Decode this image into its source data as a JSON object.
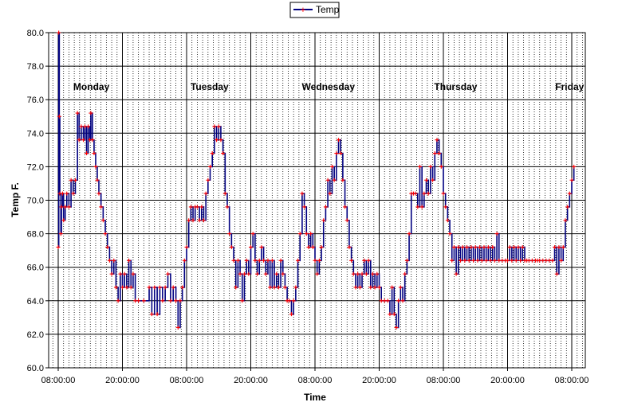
{
  "chart_data": {
    "type": "line",
    "title": "",
    "xlabel": "Time",
    "ylabel": "Temp F.",
    "ylim": [
      60,
      80
    ],
    "y_ticks": [
      "60.0",
      "62.0",
      "64.0",
      "66.0",
      "68.0",
      "70.0",
      "72.0",
      "74.0",
      "76.0",
      "78.0",
      "80.0"
    ],
    "x_range_hours": [
      0,
      100
    ],
    "x_ticks": [
      {
        "hours": 0,
        "label": "08:00:00"
      },
      {
        "hours": 12,
        "label": "20:00:00"
      },
      {
        "hours": 24,
        "label": "08:00:00"
      },
      {
        "hours": 36,
        "label": "20:00:00"
      },
      {
        "hours": 48,
        "label": "08:00:00"
      },
      {
        "hours": 60,
        "label": "20:00:00"
      },
      {
        "hours": 72,
        "label": "08:00:00"
      },
      {
        "hours": 84,
        "label": "20:00:00"
      },
      {
        "hours": 96,
        "label": "08:00:00"
      }
    ],
    "grid": "major horizontal and vertical lines, dotted minor vertical lines every hour",
    "legend": "top-center",
    "day_labels": [
      {
        "text": "Monday",
        "hours": 6.2
      },
      {
        "text": "Tuesday",
        "hours": 28.3
      },
      {
        "text": "Wednesday",
        "hours": 50.5
      },
      {
        "text": "Thursday",
        "hours": 74.3
      },
      {
        "text": "Friday",
        "hours": 95.6
      }
    ],
    "series": [
      {
        "name": "Temp",
        "color": "#000080",
        "marker_color": "#ff0000",
        "points": [
          [
            0.0,
            67.2
          ],
          [
            0.1,
            80.0
          ],
          [
            0.2,
            75.0
          ],
          [
            0.3,
            70.4
          ],
          [
            0.5,
            68.0
          ],
          [
            0.6,
            69.6
          ],
          [
            0.8,
            70.4
          ],
          [
            1.0,
            68.8
          ],
          [
            1.3,
            69.6
          ],
          [
            1.6,
            70.4
          ],
          [
            2.0,
            69.6
          ],
          [
            2.4,
            71.2
          ],
          [
            2.8,
            70.4
          ],
          [
            3.2,
            71.2
          ],
          [
            3.6,
            75.2
          ],
          [
            3.9,
            73.6
          ],
          [
            4.3,
            74.4
          ],
          [
            4.7,
            73.6
          ],
          [
            5.0,
            74.4
          ],
          [
            5.3,
            72.8
          ],
          [
            5.6,
            74.4
          ],
          [
            5.9,
            73.6
          ],
          [
            6.1,
            75.2
          ],
          [
            6.4,
            73.6
          ],
          [
            6.7,
            72.8
          ],
          [
            7.0,
            72.0
          ],
          [
            7.3,
            71.2
          ],
          [
            7.6,
            70.4
          ],
          [
            8.0,
            69.6
          ],
          [
            8.4,
            68.8
          ],
          [
            8.8,
            68.0
          ],
          [
            9.2,
            67.2
          ],
          [
            9.6,
            66.4
          ],
          [
            10.0,
            65.6
          ],
          [
            10.4,
            66.4
          ],
          [
            10.8,
            64.8
          ],
          [
            11.2,
            64.0
          ],
          [
            11.6,
            65.6
          ],
          [
            12.0,
            64.8
          ],
          [
            12.4,
            65.6
          ],
          [
            12.8,
            64.8
          ],
          [
            13.2,
            66.4
          ],
          [
            13.6,
            64.8
          ],
          [
            14.0,
            65.6
          ],
          [
            14.4,
            64.0
          ],
          [
            15.0,
            64.0
          ],
          [
            16.0,
            64.0
          ],
          [
            17.0,
            64.8
          ],
          [
            17.5,
            63.2
          ],
          [
            18.0,
            64.8
          ],
          [
            18.5,
            63.2
          ],
          [
            19.0,
            64.8
          ],
          [
            19.5,
            64.0
          ],
          [
            20.0,
            64.8
          ],
          [
            20.5,
            65.6
          ],
          [
            21.0,
            64.0
          ],
          [
            21.5,
            64.8
          ],
          [
            22.0,
            64.0
          ],
          [
            22.4,
            62.4
          ],
          [
            22.8,
            64.0
          ],
          [
            23.2,
            64.8
          ],
          [
            23.6,
            66.4
          ],
          [
            24.0,
            67.2
          ],
          [
            24.4,
            68.8
          ],
          [
            24.8,
            69.6
          ],
          [
            25.2,
            68.8
          ],
          [
            25.6,
            69.6
          ],
          [
            26.0,
            69.6
          ],
          [
            26.4,
            68.8
          ],
          [
            26.8,
            69.6
          ],
          [
            27.2,
            68.8
          ],
          [
            27.6,
            70.4
          ],
          [
            28.0,
            71.2
          ],
          [
            28.4,
            72.0
          ],
          [
            28.8,
            72.8
          ],
          [
            29.2,
            74.4
          ],
          [
            29.6,
            73.6
          ],
          [
            30.0,
            74.4
          ],
          [
            30.4,
            73.6
          ],
          [
            30.8,
            72.8
          ],
          [
            31.2,
            70.4
          ],
          [
            31.6,
            69.6
          ],
          [
            32.0,
            68.0
          ],
          [
            32.4,
            67.2
          ],
          [
            32.8,
            66.4
          ],
          [
            33.2,
            64.8
          ],
          [
            33.6,
            66.4
          ],
          [
            34.0,
            65.6
          ],
          [
            34.4,
            64.0
          ],
          [
            34.8,
            65.6
          ],
          [
            35.2,
            66.4
          ],
          [
            35.6,
            65.6
          ],
          [
            36.0,
            67.2
          ],
          [
            36.4,
            68.0
          ],
          [
            36.8,
            66.4
          ],
          [
            37.2,
            65.6
          ],
          [
            37.6,
            66.4
          ],
          [
            38.0,
            67.2
          ],
          [
            38.4,
            66.4
          ],
          [
            38.8,
            65.6
          ],
          [
            39.2,
            66.4
          ],
          [
            39.6,
            64.8
          ],
          [
            40.0,
            66.4
          ],
          [
            40.4,
            64.8
          ],
          [
            40.8,
            65.6
          ],
          [
            41.2,
            64.8
          ],
          [
            41.6,
            66.4
          ],
          [
            42.0,
            65.6
          ],
          [
            42.4,
            64.8
          ],
          [
            42.8,
            64.0
          ],
          [
            43.2,
            64.0
          ],
          [
            43.6,
            63.2
          ],
          [
            44.0,
            64.0
          ],
          [
            44.4,
            64.8
          ],
          [
            44.8,
            66.4
          ],
          [
            45.2,
            68.0
          ],
          [
            45.6,
            70.4
          ],
          [
            46.0,
            69.6
          ],
          [
            46.4,
            68.0
          ],
          [
            46.8,
            67.2
          ],
          [
            47.2,
            68.0
          ],
          [
            47.6,
            67.2
          ],
          [
            48.0,
            66.4
          ],
          [
            48.4,
            65.6
          ],
          [
            48.8,
            66.4
          ],
          [
            49.2,
            67.2
          ],
          [
            49.6,
            68.8
          ],
          [
            50.0,
            69.6
          ],
          [
            50.4,
            71.2
          ],
          [
            50.8,
            70.4
          ],
          [
            51.2,
            72.0
          ],
          [
            51.6,
            71.2
          ],
          [
            52.0,
            72.8
          ],
          [
            52.4,
            73.6
          ],
          [
            52.8,
            72.8
          ],
          [
            53.2,
            71.2
          ],
          [
            53.6,
            69.6
          ],
          [
            54.0,
            68.8
          ],
          [
            54.4,
            67.2
          ],
          [
            54.8,
            66.4
          ],
          [
            55.2,
            65.6
          ],
          [
            55.6,
            64.8
          ],
          [
            56.0,
            65.6
          ],
          [
            56.4,
            64.8
          ],
          [
            56.8,
            65.6
          ],
          [
            57.2,
            66.4
          ],
          [
            57.6,
            65.6
          ],
          [
            58.0,
            66.4
          ],
          [
            58.4,
            64.8
          ],
          [
            58.8,
            65.6
          ],
          [
            59.2,
            64.8
          ],
          [
            59.6,
            65.6
          ],
          [
            60.0,
            64.8
          ],
          [
            60.4,
            64.0
          ],
          [
            61.0,
            64.0
          ],
          [
            61.6,
            64.0
          ],
          [
            62.0,
            63.2
          ],
          [
            62.4,
            64.8
          ],
          [
            62.8,
            63.2
          ],
          [
            63.2,
            62.4
          ],
          [
            63.6,
            64.0
          ],
          [
            64.0,
            64.8
          ],
          [
            64.4,
            64.0
          ],
          [
            64.8,
            65.6
          ],
          [
            65.2,
            66.4
          ],
          [
            65.6,
            68.0
          ],
          [
            66.0,
            70.4
          ],
          [
            66.4,
            70.4
          ],
          [
            66.8,
            70.4
          ],
          [
            67.2,
            69.6
          ],
          [
            67.6,
            72.0
          ],
          [
            68.0,
            69.6
          ],
          [
            68.4,
            70.4
          ],
          [
            68.8,
            71.2
          ],
          [
            69.2,
            70.4
          ],
          [
            69.6,
            72.0
          ],
          [
            70.0,
            71.2
          ],
          [
            70.4,
            72.8
          ],
          [
            70.8,
            73.6
          ],
          [
            71.2,
            72.8
          ],
          [
            71.6,
            72.0
          ],
          [
            72.0,
            70.4
          ],
          [
            72.4,
            69.6
          ],
          [
            72.8,
            68.8
          ],
          [
            73.2,
            68.0
          ],
          [
            73.6,
            66.4
          ],
          [
            74.0,
            67.2
          ],
          [
            74.4,
            65.6
          ],
          [
            74.8,
            67.2
          ],
          [
            75.2,
            66.4
          ],
          [
            75.6,
            67.2
          ],
          [
            76.0,
            66.4
          ],
          [
            76.4,
            67.2
          ],
          [
            76.8,
            66.4
          ],
          [
            77.2,
            67.2
          ],
          [
            77.6,
            66.4
          ],
          [
            78.0,
            67.2
          ],
          [
            78.4,
            66.4
          ],
          [
            78.8,
            67.2
          ],
          [
            79.2,
            66.4
          ],
          [
            79.6,
            67.2
          ],
          [
            80.0,
            66.4
          ],
          [
            80.4,
            67.2
          ],
          [
            80.8,
            66.4
          ],
          [
            81.2,
            67.2
          ],
          [
            81.6,
            66.4
          ],
          [
            82.0,
            68.0
          ],
          [
            82.4,
            66.4
          ],
          [
            83.0,
            66.4
          ],
          [
            83.6,
            66.4
          ],
          [
            84.0,
            66.4
          ],
          [
            84.4,
            67.2
          ],
          [
            84.8,
            66.4
          ],
          [
            85.2,
            67.2
          ],
          [
            85.6,
            66.4
          ],
          [
            86.0,
            67.2
          ],
          [
            86.4,
            66.4
          ],
          [
            86.8,
            67.2
          ],
          [
            87.2,
            66.4
          ],
          [
            87.6,
            66.4
          ],
          [
            88.0,
            66.4
          ],
          [
            88.6,
            66.4
          ],
          [
            89.2,
            66.4
          ],
          [
            89.6,
            66.4
          ],
          [
            90.0,
            66.4
          ],
          [
            90.6,
            66.4
          ],
          [
            91.2,
            66.4
          ],
          [
            91.8,
            66.4
          ],
          [
            92.4,
            66.4
          ],
          [
            92.8,
            67.2
          ],
          [
            93.2,
            65.6
          ],
          [
            93.6,
            67.2
          ],
          [
            94.0,
            66.4
          ],
          [
            94.4,
            67.2
          ],
          [
            94.8,
            68.8
          ],
          [
            95.2,
            69.6
          ],
          [
            95.6,
            70.4
          ],
          [
            96.0,
            71.2
          ],
          [
            96.4,
            72.0
          ]
        ]
      }
    ]
  }
}
